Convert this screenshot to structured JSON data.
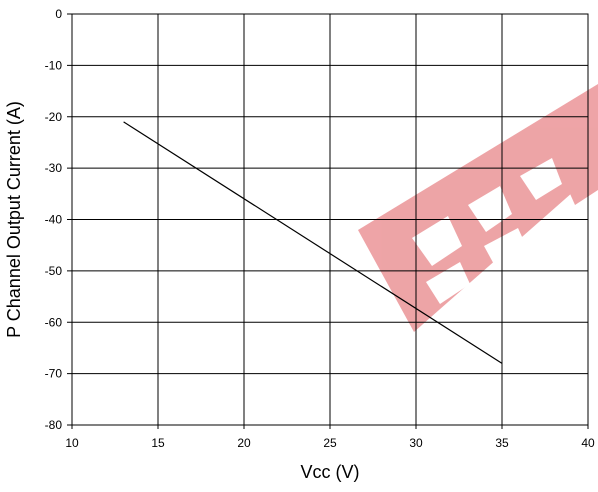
{
  "chart_data": {
    "type": "line",
    "title": "",
    "xlabel": "Vcc (V)",
    "ylabel": "P Channel Output Current (A)",
    "xlim": [
      10,
      40
    ],
    "ylim": [
      -80,
      0
    ],
    "x_ticks": [
      "10",
      "15",
      "20",
      "25",
      "30",
      "35",
      "40"
    ],
    "y_ticks": [
      "0",
      "-10",
      "-20",
      "-30",
      "-40",
      "-50",
      "-60",
      "-70",
      "-80"
    ],
    "grid": true,
    "legend": "none",
    "series": [
      {
        "x": [
          13,
          35
        ],
        "y": [
          -21,
          -68
        ]
      }
    ],
    "colors": {
      "line": "#000000",
      "grid": "#000000",
      "watermark": "#e05a5f"
    }
  }
}
